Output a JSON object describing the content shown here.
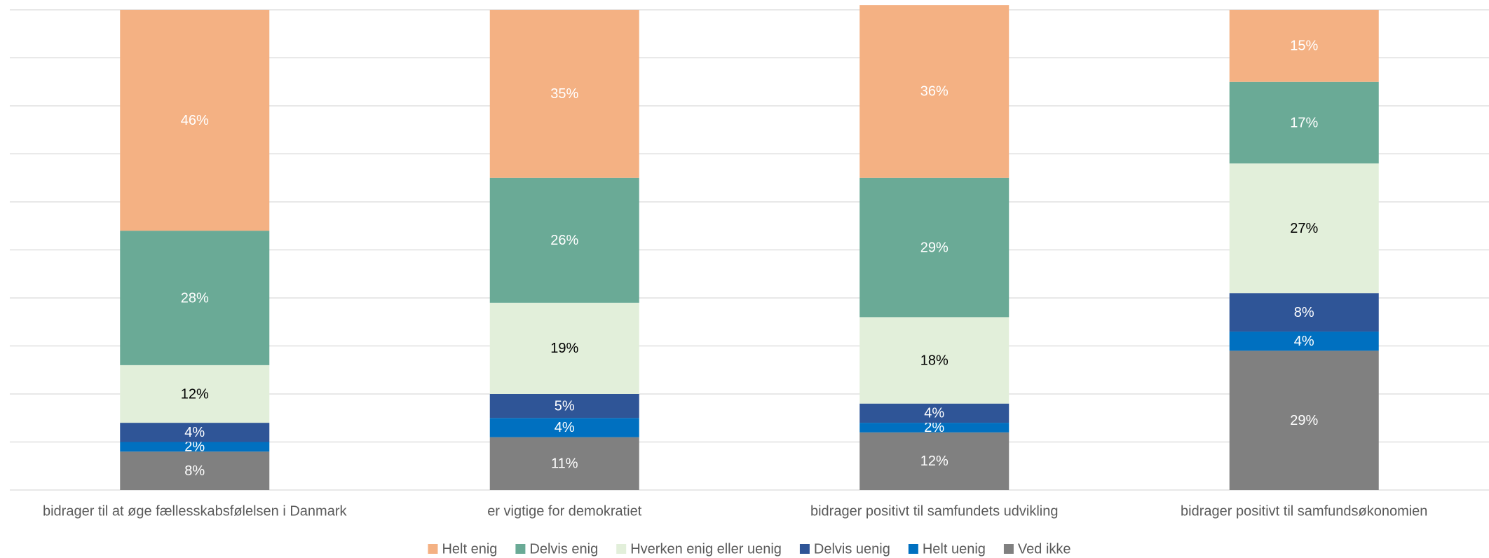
{
  "chart_data": {
    "type": "stacked_bar",
    "categories": [
      "bidrager til at øge fællesskabsfølelsen i Danmark",
      "er vigtige for demokratiet",
      "bidrager positivt til samfundets udvikling",
      "bidrager positivt til samfundsøkonomien"
    ],
    "series": [
      {
        "name": "Helt enig",
        "color": "#f4b183",
        "values": [
          46,
          35,
          36,
          15
        ],
        "value_labels": [
          "46%",
          "35%",
          "36%",
          "15%"
        ]
      },
      {
        "name": "Delvis enig",
        "color": "#6aaa96",
        "values": [
          28,
          26,
          29,
          17
        ],
        "value_labels": [
          "28%",
          "26%",
          "29%",
          "17%"
        ]
      },
      {
        "name": "Hverken enig eller uenig",
        "color": "#e2efda",
        "values": [
          12,
          19,
          18,
          27
        ],
        "value_labels": [
          "12%",
          "19%",
          "18%",
          "27%"
        ]
      },
      {
        "name": "Delvis uenig",
        "color": "#2f5597",
        "values": [
          4,
          5,
          4,
          8
        ],
        "value_labels": [
          "4%",
          "5%",
          "4%",
          "8%"
        ]
      },
      {
        "name": "Helt uenig",
        "color": "#0070c0",
        "values": [
          2,
          4,
          2,
          4
        ],
        "value_labels": [
          "2%",
          "4%",
          "2%",
          "4%"
        ]
      },
      {
        "name": "Ved ikke",
        "color": "#808080",
        "values": [
          8,
          11,
          12,
          29
        ],
        "value_labels": [
          "8%",
          "11%",
          "12%",
          "29%"
        ]
      }
    ],
    "ylim": [
      0,
      100
    ],
    "yticks": [
      0,
      10,
      20,
      30,
      40,
      50,
      60,
      70,
      80,
      90,
      100
    ],
    "grid": true,
    "legend": "bottom"
  }
}
